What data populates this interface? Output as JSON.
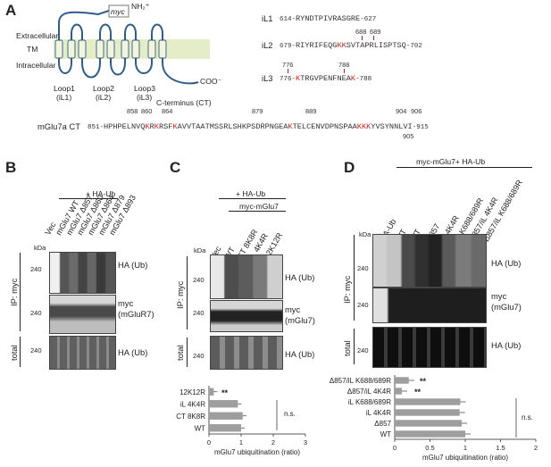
{
  "panels": {
    "A": "A",
    "B": "B",
    "C": "C",
    "D": "D"
  },
  "panelA": {
    "extracellular": "Extracellular",
    "tm": "TM",
    "intracellular": "Intracellular",
    "myc": "myc",
    "nh2": "NH₂⁺",
    "coo": "COO⁻",
    "loop1": "Loop1",
    "loop1b": "(iL1)",
    "loop2": "Loop2",
    "loop2b": "(iL2)",
    "loop3": "Loop3",
    "loop3b": "(iL3)",
    "cterm1": "C-terminus (CT)",
    "il1_name": "iL1",
    "il1_start": "614-",
    "il1_seq": "RYNDTPIVRASGRE",
    "il1_end": "-627",
    "il2_name": "iL2",
    "il2_pos1": "688",
    "il2_pos2": "689",
    "il2_start": "679-",
    "il2_pre": "RIYRIFEQG",
    "il2_red": "KK",
    "il2_post": "SVTAPRLISPTSQ",
    "il2_end": "-702",
    "il3_name": "iL3",
    "il3_pos1": "776",
    "il3_pos2": "788",
    "il3_start": "776-",
    "il3_red1": "K",
    "il3_mid": "TRGVPENFNEA",
    "il3_red2": "K",
    "il3_end": "-788",
    "ct_name": "mGlu7a CT",
    "ct_start": "851-",
    "ct_seq_a": "HPHPELNVQ",
    "ct_k1": "K",
    "ct_r1": "R",
    "ct_k2": "K",
    "ct_r2": "R",
    "ct_seq_b": "SF",
    "ct_k3": "K",
    "ct_seq_c": "AVVTAATMSSRLSHK",
    "ct_k4": "P",
    "ct_seq_d": "SDRPNGEA",
    "ct_k5": "K",
    "ct_seq_e": "TELCENVDPNSPAA",
    "ct_k6": "KKK",
    "ct_seq_f": "YVSYNNLVI",
    "ct_end": "-915",
    "ct_positions": [
      "858",
      "860",
      "864",
      "879",
      "889",
      "904",
      "906",
      "905"
    ]
  },
  "panelB": {
    "header": "+ HA-Ub",
    "lanes": [
      "Vec",
      "mGlu7 WT",
      "mGlu7 Δ857",
      "mGlu7 Δ860",
      "mGlu7 Δ864",
      "mGlu7 Δ879",
      "mGlu7 Δ893"
    ],
    "kda": "kDa",
    "ip": "IP: myc",
    "total": "total",
    "mw": [
      "240",
      "240",
      "240"
    ],
    "blot_labels": [
      "HA (Ub)",
      "myc",
      "(mGluR7)",
      "HA (Ub)"
    ]
  },
  "panelC": {
    "header1": "+ HA-Ub",
    "header2": "myc-mGlu7",
    "lanes": [
      "Vec",
      "WT",
      "CT 8K8R",
      "iL 4K4R",
      "12K12R"
    ],
    "kda": "kDa",
    "ip": "IP: myc",
    "total": "total",
    "mw": [
      "240",
      "240",
      "240"
    ],
    "blot_labels": [
      "HA (Ub)",
      "myc",
      "(mGlu7)",
      "HA (Ub)"
    ],
    "sig": "**",
    "ns": "n.s."
  },
  "panelD": {
    "header": "myc-mGlu7+ HA-Ub",
    "lanes": [
      "HA-Ub",
      "WT",
      "WT",
      "Δ857",
      "iL 4K4R",
      "iL K688/689R",
      "Δ857/iL 4K4R",
      "Δ857/iL K688/689R"
    ],
    "kda": "kDa",
    "ip": "IP: myc",
    "total": "total",
    "mw": [
      "240",
      "240",
      "240"
    ],
    "blot_labels": [
      "HA (Ub)",
      "myc",
      "(mGlu7)",
      "HA (Ub)"
    ],
    "sig1": "**",
    "sig2": "**",
    "ns": "n.s."
  },
  "chart_data": [
    {
      "type": "bar",
      "orientation": "horizontal",
      "categories": [
        "12K12R",
        "iL 4K4R",
        "CT 8K8R",
        "WT"
      ],
      "values": [
        0.15,
        0.9,
        1.05,
        1.0
      ],
      "xlabel": "mGlu7 ubiquitination (ratio)",
      "xticks": [
        "0",
        "1",
        "2",
        "3"
      ],
      "xlim": [
        0,
        3
      ],
      "color": "#9e9e9e"
    },
    {
      "type": "bar",
      "orientation": "horizontal",
      "categories": [
        "Δ857/iL K688/689R",
        "Δ857/iL 4K4R",
        "iL K688/689R",
        "iL 4K4R",
        "Δ857",
        "WT"
      ],
      "values": [
        0.2,
        0.1,
        0.93,
        0.92,
        0.95,
        1.0
      ],
      "xlabel": "mGlu7 ubiquitination (ratio)",
      "xticks": [
        "0",
        "0.5",
        "1",
        "1.5",
        "2"
      ],
      "xlim": [
        0,
        2
      ],
      "color": "#9e9e9e"
    }
  ]
}
